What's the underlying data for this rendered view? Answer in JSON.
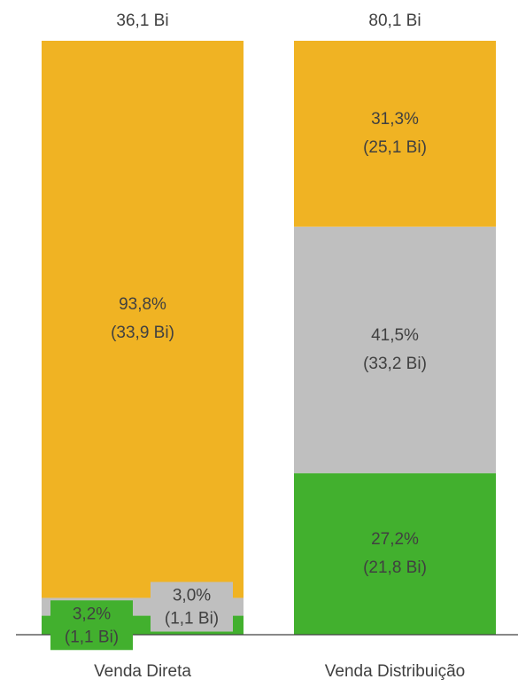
{
  "chart_data": {
    "type": "stacked_bar_100",
    "categories": [
      "Venda Direta",
      "Venda Distribuição"
    ],
    "total_labels": [
      "36,1 Bi",
      "80,1 Bi"
    ],
    "ylim": [
      0,
      100
    ],
    "series": [
      {
        "color": "#42b02e",
        "values": [
          3.2,
          27.2
        ],
        "value_labels": [
          "3,2%",
          "27,2%"
        ],
        "amount_labels": [
          "(1,1 Bi)",
          "(21,8 Bi)"
        ]
      },
      {
        "color": "#bfbfbf",
        "values": [
          3.0,
          41.5
        ],
        "value_labels": [
          "3,0%",
          "41,5%"
        ],
        "amount_labels": [
          "(1,1 Bi)",
          "(33,2 Bi)"
        ]
      },
      {
        "color": "#f0b323",
        "values": [
          93.8,
          31.3
        ],
        "value_labels": [
          "93,8%",
          "31,3%"
        ],
        "amount_labels": [
          "(33,9 Bi)",
          "(25,1 Bi)"
        ]
      }
    ]
  }
}
